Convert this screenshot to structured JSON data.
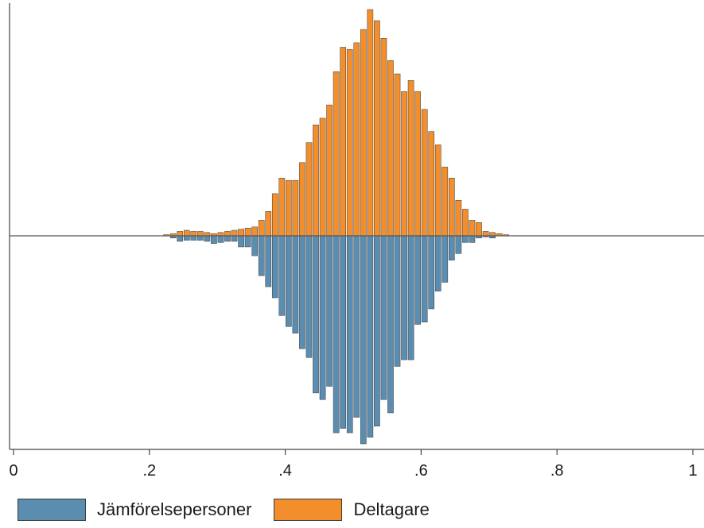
{
  "colors": {
    "jamforelse": "#5b8db1",
    "deltagare": "#f28e2c",
    "axis": "#444444"
  },
  "chart_data": {
    "type": "bar",
    "subtype": "mirrored-histogram",
    "title": "",
    "xlabel": "",
    "ylabel": "",
    "xlim": [
      0,
      1
    ],
    "xticks": [
      0,
      0.2,
      0.4,
      0.6,
      0.8,
      1
    ],
    "xtick_labels": [
      "0",
      ".2",
      ".4",
      ".6",
      ".8",
      "1"
    ],
    "ylim": [
      -9.5,
      10.2
    ],
    "grid": false,
    "legend_position": "bottom-left",
    "bin_width": 0.01,
    "bin_start": 0.22,
    "series": [
      {
        "name": "Deltagare",
        "direction": "up",
        "color": "#f28e2c",
        "values": [
          0.05,
          0.1,
          0.2,
          0.25,
          0.2,
          0.2,
          0.15,
          0.1,
          0.15,
          0.2,
          0.25,
          0.3,
          0.35,
          0.4,
          0.7,
          1.1,
          1.9,
          2.6,
          2.5,
          2.5,
          3.3,
          4.2,
          5.0,
          5.3,
          5.9,
          7.4,
          8.5,
          8.4,
          8.7,
          9.3,
          10.2,
          9.7,
          8.9,
          7.9,
          7.3,
          6.5,
          7.0,
          6.5,
          5.7,
          4.7,
          4.1,
          3.1,
          2.6,
          1.6,
          1.2,
          0.7,
          0.6,
          0.2,
          0.15,
          0.1,
          0.05
        ]
      },
      {
        "name": "Jämförelsepersoner",
        "direction": "down",
        "color": "#5b8db1",
        "values": [
          0.0,
          0.1,
          0.25,
          0.2,
          0.2,
          0.2,
          0.25,
          0.35,
          0.3,
          0.25,
          0.25,
          0.5,
          0.5,
          0.9,
          1.8,
          2.3,
          2.8,
          3.6,
          4.1,
          4.4,
          5.1,
          5.5,
          7.1,
          7.4,
          6.8,
          8.9,
          8.7,
          8.9,
          8.2,
          9.4,
          9.1,
          8.6,
          7.4,
          8.0,
          5.9,
          5.6,
          5.6,
          4.0,
          3.9,
          3.3,
          2.5,
          2.1,
          1.1,
          0.8,
          0.3,
          0.3,
          0.1,
          0.05,
          0.1,
          0.0,
          0.0
        ]
      }
    ]
  }
}
